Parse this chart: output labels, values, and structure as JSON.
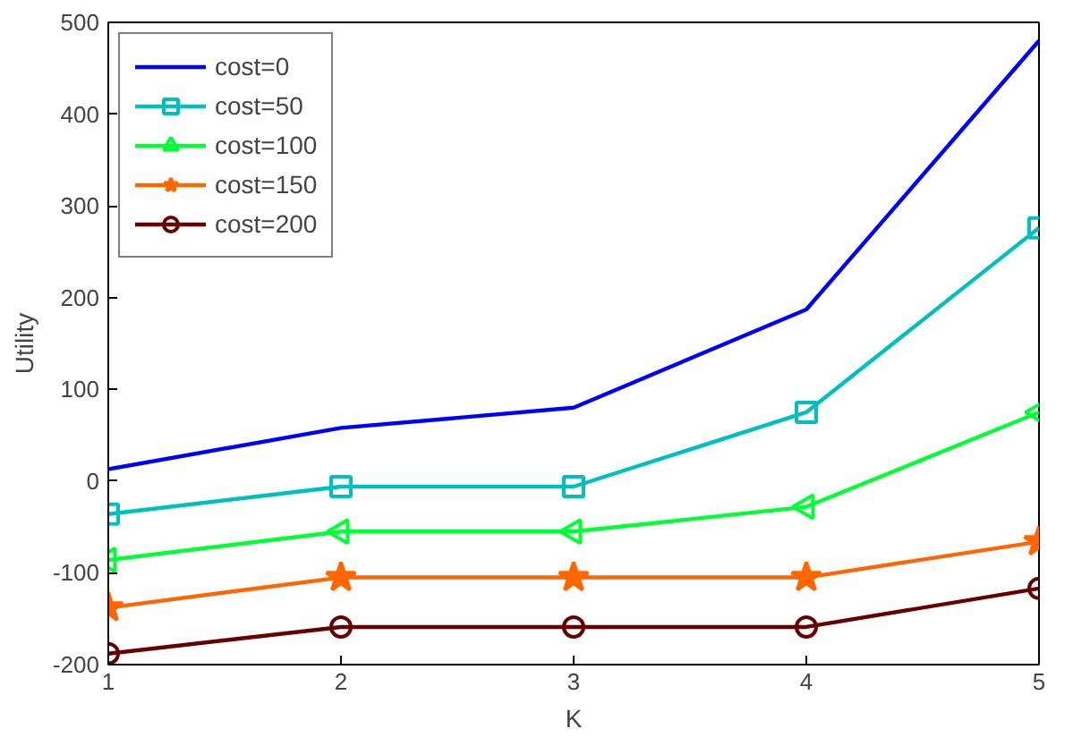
{
  "chart_data": {
    "type": "line",
    "xlabel": "K",
    "ylabel": "Utility",
    "x": [
      1,
      2,
      3,
      4,
      5
    ],
    "series": [
      {
        "name": "cost=0",
        "color": "#0000ff",
        "marker": "none",
        "values": [
          13,
          58,
          80,
          187,
          480
        ]
      },
      {
        "name": "cost=50",
        "color": "#00bfbf",
        "marker": "square",
        "values": [
          -36,
          -6,
          -6,
          75,
          276
        ]
      },
      {
        "name": "cost=100",
        "color": "#00ff33",
        "marker": "triangle",
        "values": [
          -86,
          -55,
          -55,
          -28,
          75
        ]
      },
      {
        "name": "cost=150",
        "color": "#ff6600",
        "marker": "star",
        "values": [
          -138,
          -105,
          -105,
          -105,
          -66
        ]
      },
      {
        "name": "cost=200",
        "color": "#660000",
        "marker": "circle",
        "values": [
          -188,
          -159,
          -159,
          -159,
          -117
        ]
      }
    ],
    "xlim": [
      1,
      5
    ],
    "ylim": [
      -200,
      500
    ],
    "xticks": [
      1,
      2,
      3,
      4,
      5
    ],
    "yticks": [
      -200,
      -100,
      0,
      100,
      200,
      300,
      400,
      500
    ],
    "grid": false,
    "legend": "top left",
    "line_style": "solid"
  }
}
